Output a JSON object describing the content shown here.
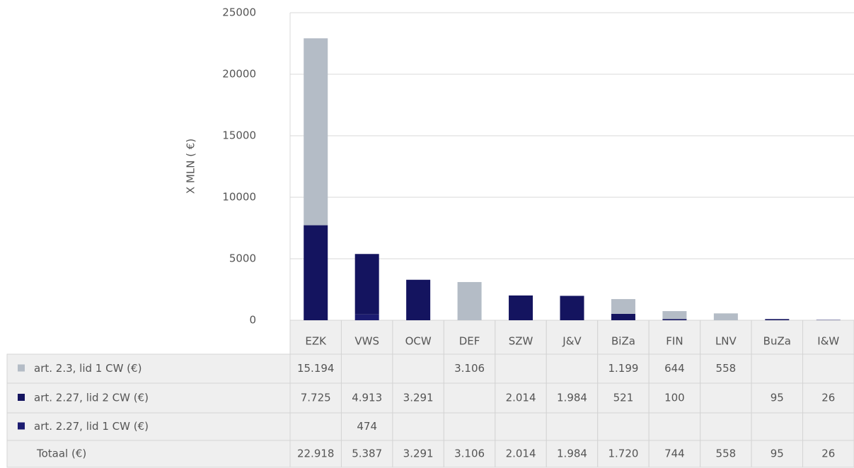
{
  "chart_data": {
    "type": "bar",
    "stacked": true,
    "y_label": "X MLN ( €)",
    "categories": [
      "EZK",
      "VWS",
      "OCW",
      "DEF",
      "SZW",
      "J&V",
      "BiZa",
      "FIN",
      "LNV",
      "BuZa",
      "I&W"
    ],
    "series": [
      {
        "name": "art. 2.3, lid 1 CW (€)",
        "color": "#b4bcc6",
        "values": [
          15194,
          null,
          null,
          3106,
          null,
          null,
          1199,
          644,
          558,
          null,
          null
        ],
        "value_labels": [
          "15.194",
          null,
          null,
          "3.106",
          null,
          null,
          "1.199",
          "644",
          "558",
          null,
          null
        ]
      },
      {
        "name": "art. 2.27, lid 2 CW (€)",
        "color": "#14145f",
        "values": [
          7725,
          4913,
          3291,
          null,
          2014,
          1984,
          521,
          100,
          null,
          95,
          26
        ],
        "value_labels": [
          "7.725",
          "4.913",
          "3.291",
          null,
          "2.014",
          "1.984",
          "521",
          "100",
          null,
          "95",
          "26"
        ]
      },
      {
        "name": "art. 2.27, lid 1 CW (€)",
        "color": "#1b1b70",
        "values": [
          null,
          474,
          null,
          null,
          null,
          null,
          null,
          null,
          null,
          null,
          null
        ],
        "value_labels": [
          null,
          "474",
          null,
          null,
          null,
          null,
          null,
          null,
          null,
          null,
          null
        ]
      }
    ],
    "total": {
      "name": "Totaal (€)",
      "values": [
        22918,
        5387,
        3291,
        3106,
        2014,
        1984,
        1720,
        744,
        558,
        95,
        26
      ],
      "value_labels": [
        "22.918",
        "5.387",
        "3.291",
        "3.106",
        "2.014",
        "1.984",
        "1.720",
        "744",
        "558",
        "95",
        "26"
      ]
    },
    "ylim": [
      0,
      25000
    ],
    "yticks": [
      0,
      5000,
      10000,
      15000,
      20000,
      25000
    ],
    "grid": true
  }
}
